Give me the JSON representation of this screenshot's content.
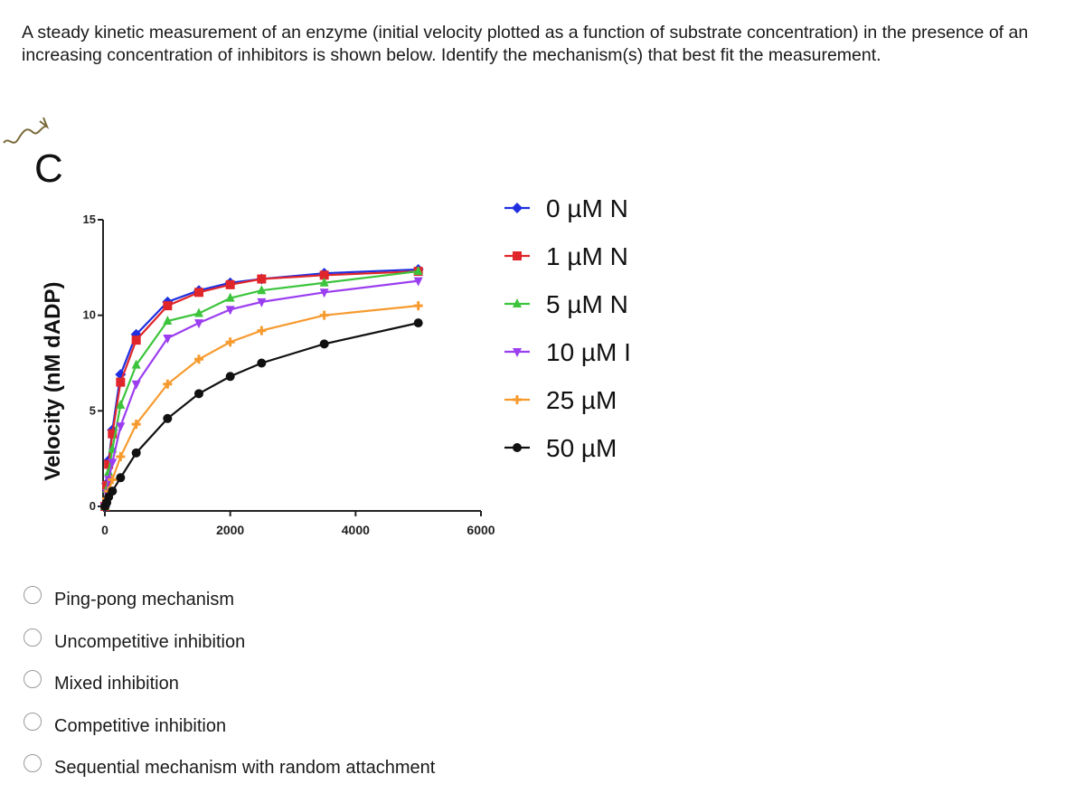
{
  "question": {
    "text": "A steady kinetic measurement of an enzyme (initial velocity plotted as a function of substrate concentration) in the presence of an increasing concentration of inhibitors is shown below.  Identify the mechanism(s) that best fit the measurement."
  },
  "figure": {
    "panel_letter": "C"
  },
  "chart_data": {
    "type": "line",
    "title": "",
    "xlabel": "",
    "ylabel": "Velocity (nM dADP)",
    "xlim": [
      0,
      6000
    ],
    "ylim": [
      0,
      15
    ],
    "x_ticks": [
      "0",
      "2000",
      "4000",
      "6000"
    ],
    "y_ticks": [
      "0",
      "5",
      "10",
      "15"
    ],
    "legend_position": "right",
    "x": [
      0,
      30,
      60,
      120,
      250,
      500,
      1000,
      1500,
      2000,
      2500,
      3500,
      5000
    ],
    "series": [
      {
        "name": "0 µM N",
        "color": "#1f2fe0",
        "marker": "diamond",
        "values": [
          0,
          1.2,
          2.4,
          4.0,
          6.9,
          9.0,
          10.7,
          11.3,
          11.7,
          11.9,
          12.2,
          12.4
        ]
      },
      {
        "name": "1 µM N",
        "color": "#e0262a",
        "marker": "square",
        "values": [
          0,
          1.1,
          2.2,
          3.8,
          6.5,
          8.7,
          10.5,
          11.2,
          11.6,
          11.9,
          12.1,
          12.3
        ]
      },
      {
        "name": "5 µM N",
        "color": "#3cc43c",
        "marker": "triangle",
        "values": [
          0,
          0.9,
          1.8,
          3.0,
          5.3,
          7.4,
          9.7,
          10.1,
          10.9,
          11.3,
          11.7,
          12.3
        ]
      },
      {
        "name": "10 µM I",
        "color": "#9b3ef0",
        "marker": "triangle-down",
        "values": [
          0,
          0.7,
          1.4,
          2.3,
          4.2,
          6.4,
          8.8,
          9.6,
          10.3,
          10.7,
          11.2,
          11.8
        ]
      },
      {
        "name": "25 µM",
        "color": "#f79a2e",
        "marker": "plus",
        "values": [
          0,
          0.4,
          0.8,
          1.4,
          2.6,
          4.3,
          6.4,
          7.7,
          8.6,
          9.2,
          10.0,
          10.5
        ]
      },
      {
        "name": "50 µM",
        "color": "#111111",
        "marker": "circle",
        "values": [
          0,
          0.2,
          0.5,
          0.8,
          1.5,
          2.8,
          4.6,
          5.9,
          6.8,
          7.5,
          8.5,
          9.6
        ]
      }
    ]
  },
  "options": [
    {
      "label": "Ping-pong mechanism"
    },
    {
      "label": "Uncompetitive inhibition"
    },
    {
      "label": "Mixed inhibition"
    },
    {
      "label": "Competitive inhibition"
    },
    {
      "label": "Sequential mechanism with random attachment"
    }
  ]
}
